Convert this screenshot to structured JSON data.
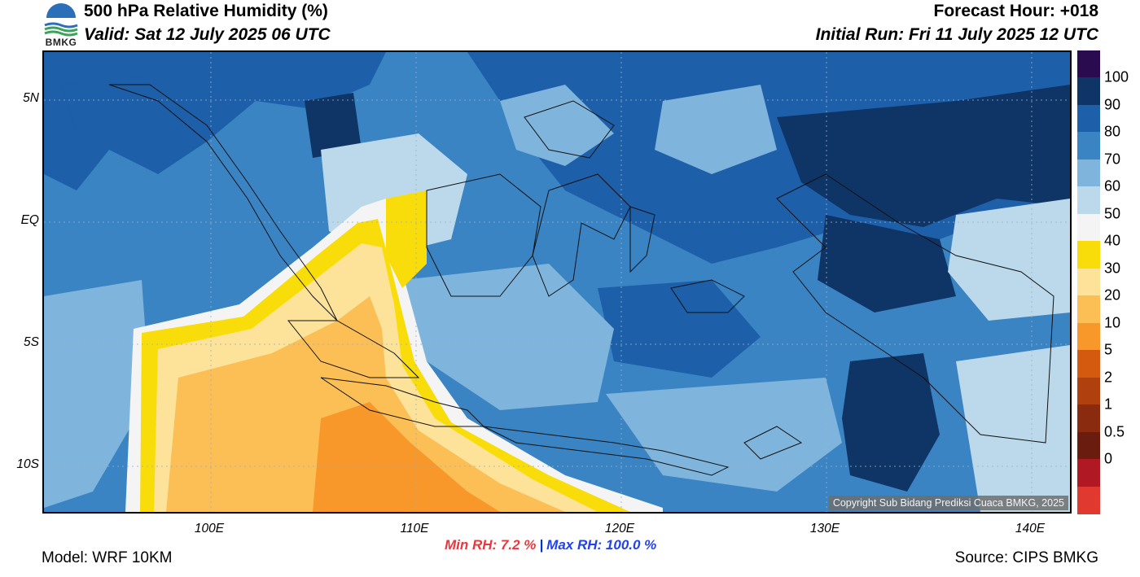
{
  "header": {
    "title": "500 hPa Relative Humidity (%)",
    "valid": "Valid: Sat 12 July 2025 06 UTC",
    "forecast_hour": "Forecast Hour: +018",
    "initial_run": "Initial Run: Fri 11 July 2025 12 UTC",
    "logo_text": "BMKG"
  },
  "map": {
    "copyright": "Copyright Sub Bidang Prediksi Cuaca BMKG, 2025",
    "lat_labels": [
      "5N",
      "EQ",
      "5S",
      "10S"
    ],
    "lon_labels": [
      "100E",
      "110E",
      "120E",
      "130E",
      "140E"
    ]
  },
  "colorbar": {
    "labels": [
      "100",
      "90",
      "80",
      "70",
      "60",
      "50",
      "40",
      "30",
      "20",
      "10",
      "5",
      "2",
      "1",
      "0.5",
      "0"
    ],
    "colors": [
      "#2a0b4f",
      "#0f3466",
      "#1d5fa8",
      "#3b84c4",
      "#7fb5dc",
      "#bcd9ec",
      "#f4f4f4",
      "#f9dd0a",
      "#fde29a",
      "#fbbf56",
      "#f8972a",
      "#d45a10",
      "#b0400e",
      "#8a2b0f",
      "#6a1c0f",
      "#b01823",
      "#e03a30"
    ]
  },
  "footer": {
    "min_rh": "Min RH:   7.2 %",
    "separator": "|",
    "max_rh": "Max RH: 100.0 %",
    "model": "Model: WRF 10KM",
    "source": "Source: CIPS BMKG"
  }
}
